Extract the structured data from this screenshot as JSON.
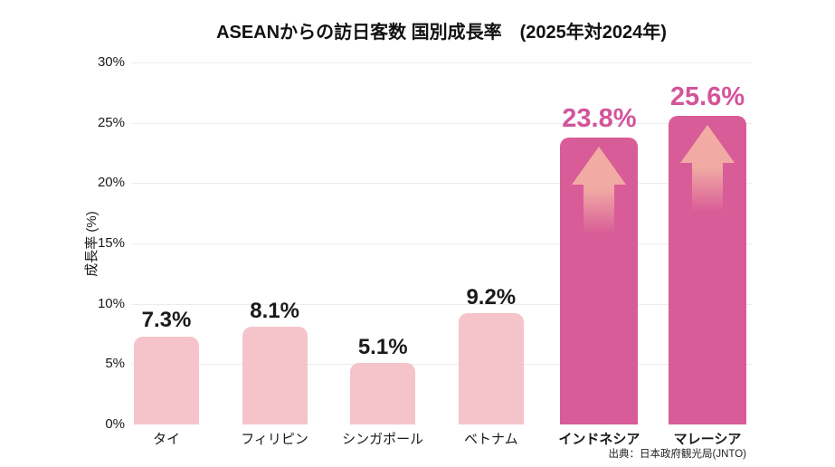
{
  "title": "ASEANからの訪日客数 国別成長率　(2025年対2024年)",
  "source_note": "出典：日本政府観光局(JNTO)",
  "chart_data": {
    "type": "bar",
    "title": "ASEANからの訪日客数 国別成長率　(2025年対2024年)",
    "xlabel": "",
    "ylabel": "成長率 (%)",
    "ylim": [
      0,
      30
    ],
    "ytick_values": [
      0,
      5,
      10,
      15,
      20,
      25,
      30
    ],
    "ytick_labels": [
      "0%",
      "5%",
      "10%",
      "15%",
      "20%",
      "25%",
      "30%"
    ],
    "grid": "horizontal",
    "legend": "none",
    "categories": [
      "タイ",
      "フィリピン",
      "シンガポール",
      "ベトナム",
      "インドネシア",
      "マレーシア"
    ],
    "values": [
      7.3,
      8.1,
      5.1,
      9.2,
      23.8,
      25.6
    ],
    "value_labels": [
      "7.3%",
      "8.1%",
      "5.1%",
      "9.2%",
      "23.8%",
      "25.6%"
    ],
    "highlighted": [
      false,
      false,
      false,
      false,
      true,
      true
    ],
    "highlight_marker": "up-arrow",
    "colors": {
      "bar": "#F5C4CA",
      "bar_highlight": "#D85C97",
      "value_label": "#1A1A1A",
      "value_label_highlight": "#D4549A",
      "arrow": "#F2ADA4",
      "gridline": "#ECECEC",
      "background": "#FFFFFF"
    }
  }
}
